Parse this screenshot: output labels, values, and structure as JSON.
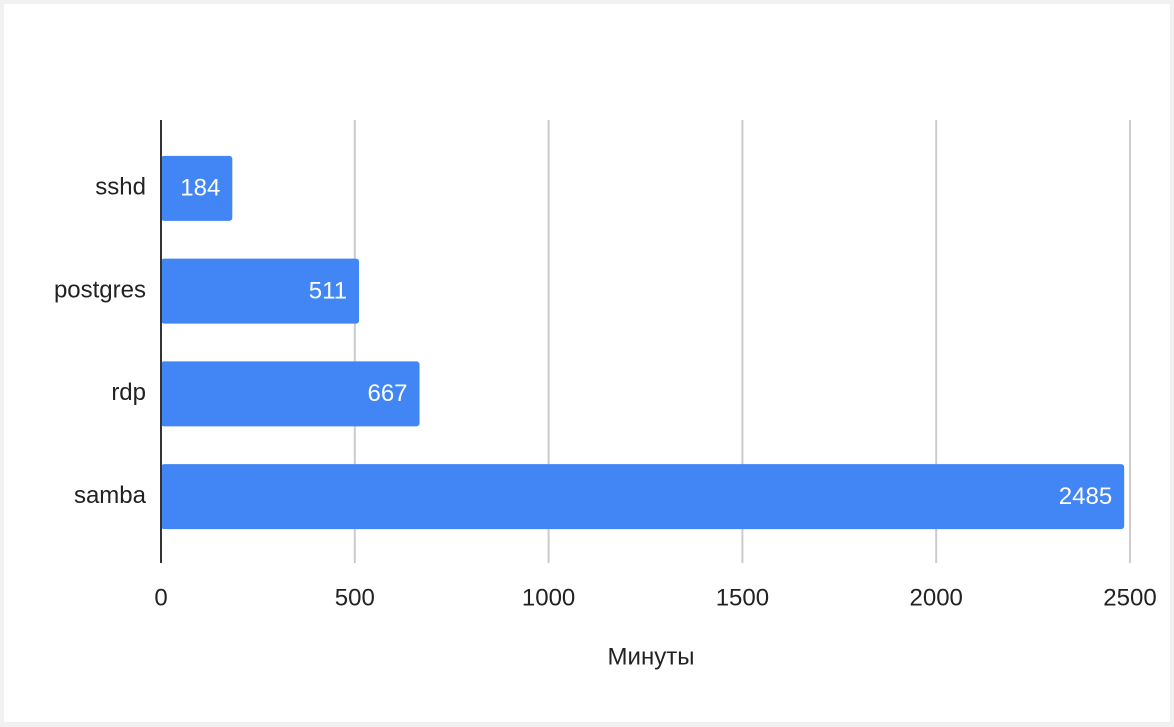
{
  "chart_data": {
    "type": "bar",
    "orientation": "horizontal",
    "xlabel": "Минуты",
    "categories": [
      "sshd",
      "postgres",
      "rdp",
      "samba"
    ],
    "values": [
      184,
      511,
      667,
      2485
    ],
    "color": "#4285f4",
    "xlim": [
      0,
      2500
    ],
    "xticks": [
      0,
      500,
      1000,
      1500,
      2000,
      2500
    ],
    "grid": true,
    "data_labels": true
  }
}
